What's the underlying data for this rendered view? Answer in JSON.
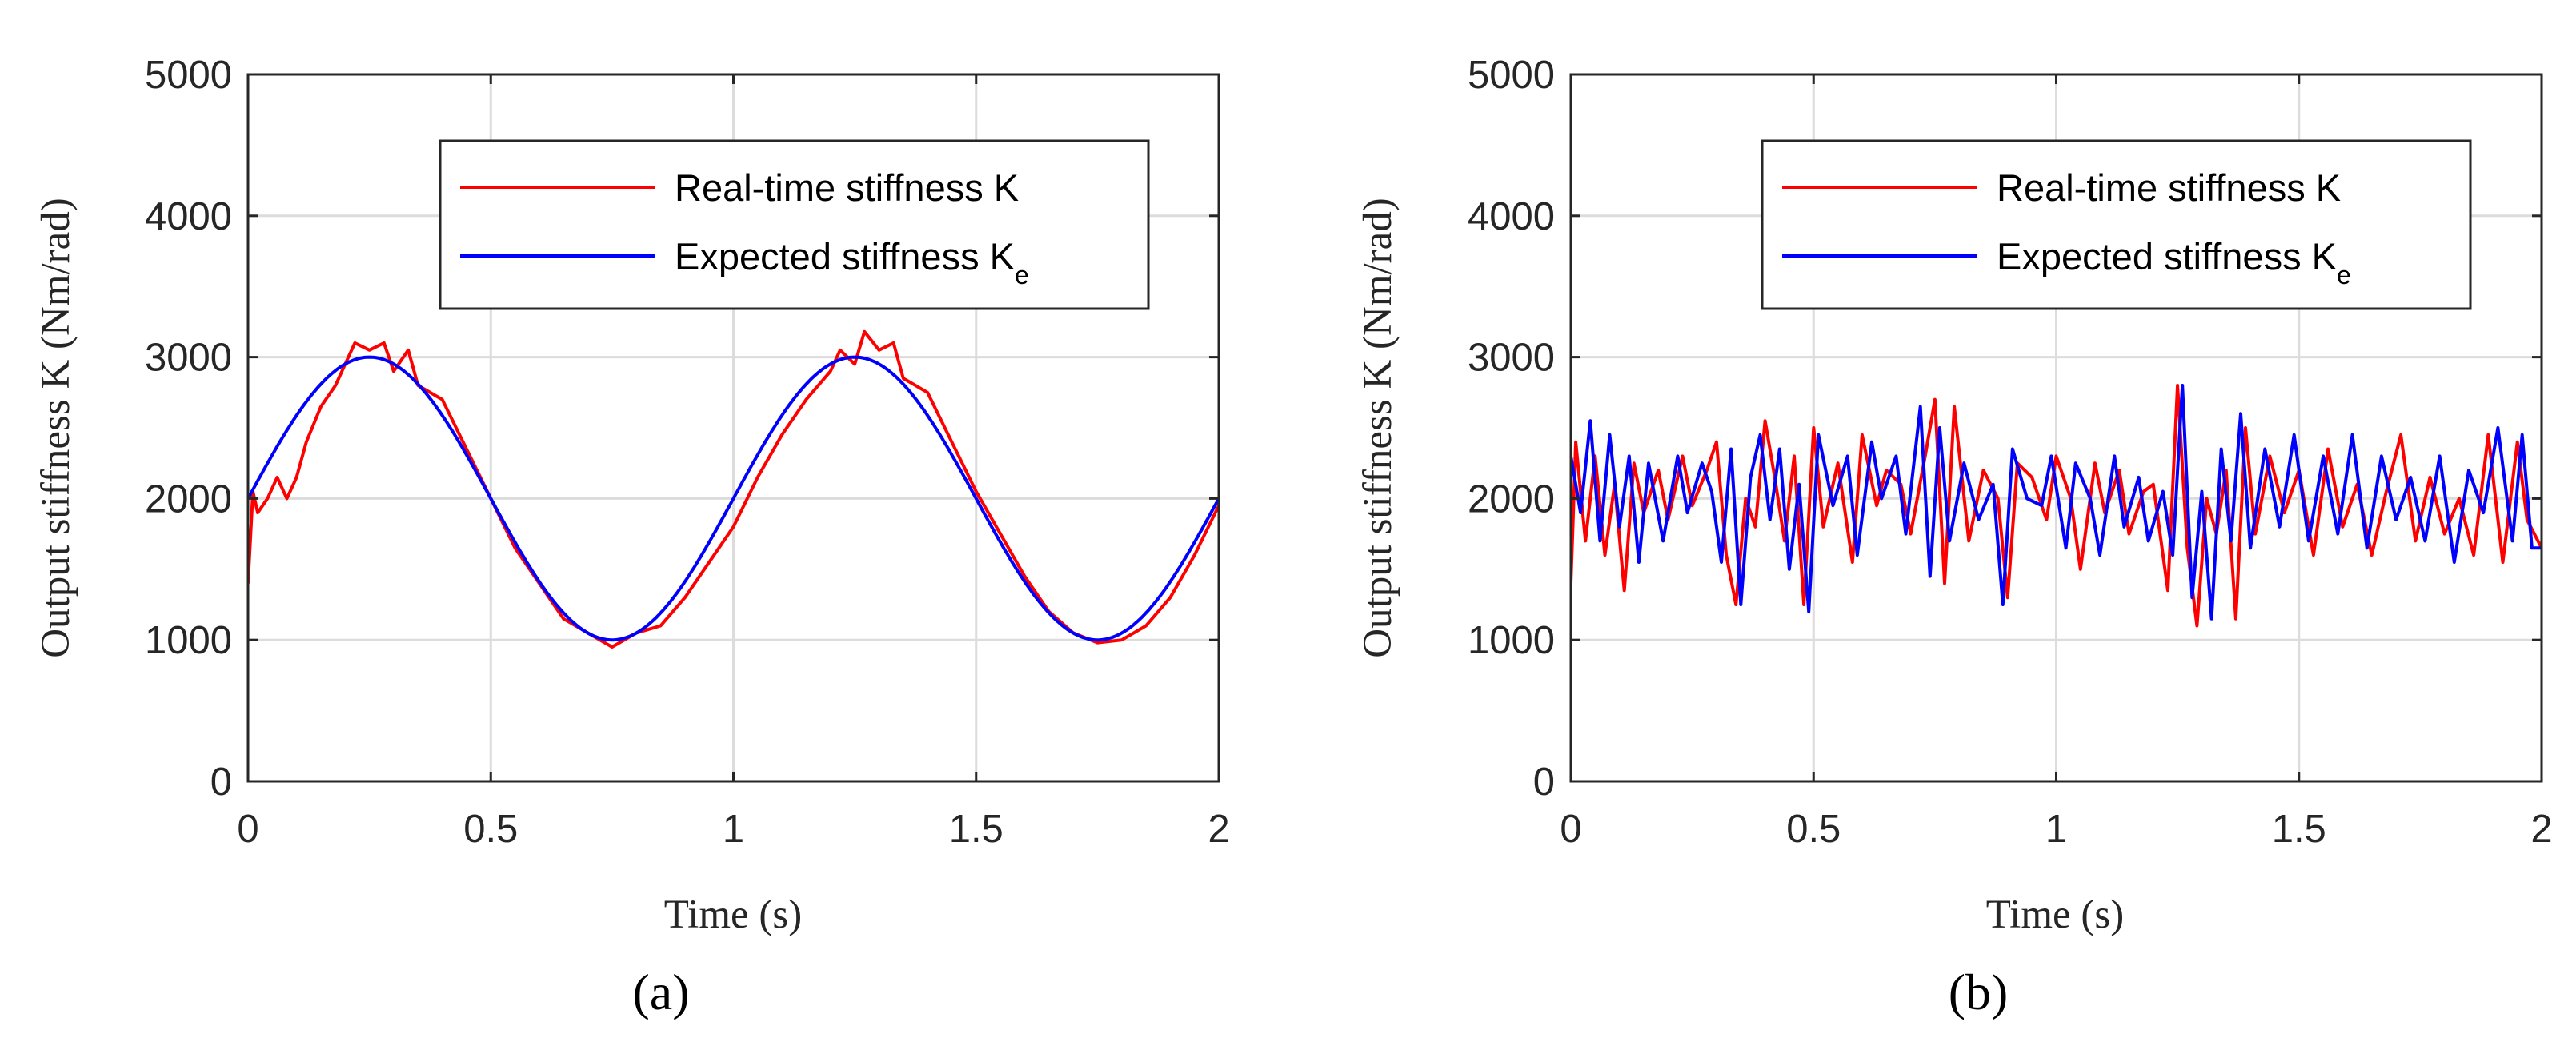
{
  "chart_data": [
    {
      "type": "line",
      "panel_label": "(a)",
      "xlabel": "Time (s)",
      "ylabel": "Output stiffness K (Nm/rad)",
      "xlim": [
        0,
        2
      ],
      "ylim": [
        0,
        5000
      ],
      "xticks": [
        0,
        0.5,
        1,
        1.5,
        2
      ],
      "xtick_labels": [
        "0",
        "0.5",
        "1",
        "1.5",
        "2"
      ],
      "yticks": [
        0,
        1000,
        2000,
        3000,
        4000,
        5000
      ],
      "ytick_labels": [
        "0",
        "1000",
        "2000",
        "3000",
        "4000",
        "5000"
      ],
      "grid": true,
      "legend_position": "top-right",
      "series": [
        {
          "name": "Real-time stiffness K",
          "color": "#ff0000",
          "x": [
            0,
            0.01,
            0.02,
            0.04,
            0.06,
            0.08,
            0.1,
            0.12,
            0.15,
            0.18,
            0.2,
            0.22,
            0.25,
            0.28,
            0.3,
            0.33,
            0.35,
            0.4,
            0.45,
            0.5,
            0.55,
            0.6,
            0.65,
            0.7,
            0.75,
            0.8,
            0.85,
            0.9,
            0.95,
            1.0,
            1.05,
            1.1,
            1.15,
            1.2,
            1.22,
            1.25,
            1.27,
            1.3,
            1.33,
            1.35,
            1.4,
            1.45,
            1.5,
            1.55,
            1.6,
            1.65,
            1.7,
            1.75,
            1.8,
            1.85,
            1.9,
            1.95,
            2.0
          ],
          "y": [
            1400,
            2050,
            1900,
            2000,
            2150,
            2000,
            2150,
            2400,
            2650,
            2800,
            2950,
            3100,
            3050,
            3100,
            2900,
            3050,
            2800,
            2700,
            2350,
            2000,
            1650,
            1400,
            1150,
            1050,
            950,
            1050,
            1100,
            1300,
            1550,
            1800,
            2150,
            2450,
            2700,
            2900,
            3050,
            2950,
            3180,
            3050,
            3100,
            2850,
            2750,
            2400,
            2050,
            1750,
            1450,
            1200,
            1050,
            980,
            1000,
            1100,
            1300,
            1600,
            1950
          ]
        },
        {
          "name": "Expected stiffness Ke",
          "color": "#0000ff",
          "function": "2000 + 1000*sin(2*pi*t)",
          "x": [
            0,
            0.1,
            0.2,
            0.25,
            0.3,
            0.4,
            0.5,
            0.6,
            0.7,
            0.75,
            0.8,
            0.9,
            1.0,
            1.1,
            1.2,
            1.25,
            1.3,
            1.4,
            1.5,
            1.6,
            1.7,
            1.75,
            1.8,
            1.9,
            2.0
          ],
          "y": [
            2000,
            2588,
            2951,
            3000,
            2951,
            2588,
            2000,
            1412,
            1049,
            1000,
            1049,
            1412,
            2000,
            2588,
            2951,
            3000,
            2951,
            2588,
            2000,
            1412,
            1049,
            1000,
            1049,
            1412,
            2000
          ]
        }
      ]
    },
    {
      "type": "line",
      "panel_label": "(b)",
      "xlabel": "Time (s)",
      "ylabel": "Output stiffness K (Nm/rad)",
      "xlim": [
        0,
        2
      ],
      "ylim": [
        0,
        5000
      ],
      "xticks": [
        0,
        0.5,
        1,
        1.5,
        2
      ],
      "xtick_labels": [
        "0",
        "0.5",
        "1",
        "1.5",
        "2"
      ],
      "yticks": [
        0,
        1000,
        2000,
        3000,
        4000,
        5000
      ],
      "ytick_labels": [
        "0",
        "1000",
        "2000",
        "3000",
        "4000",
        "5000"
      ],
      "grid": true,
      "legend_position": "top-right",
      "series": [
        {
          "name": "Real-time stiffness K",
          "color": "#ff0000",
          "x": [
            0,
            0.01,
            0.03,
            0.05,
            0.07,
            0.09,
            0.11,
            0.13,
            0.15,
            0.18,
            0.2,
            0.23,
            0.25,
            0.28,
            0.3,
            0.32,
            0.34,
            0.36,
            0.38,
            0.4,
            0.42,
            0.44,
            0.46,
            0.48,
            0.5,
            0.52,
            0.55,
            0.58,
            0.6,
            0.63,
            0.65,
            0.68,
            0.7,
            0.73,
            0.75,
            0.77,
            0.79,
            0.82,
            0.85,
            0.88,
            0.9,
            0.92,
            0.95,
            0.98,
            1.0,
            1.03,
            1.05,
            1.08,
            1.1,
            1.13,
            1.15,
            1.18,
            1.2,
            1.23,
            1.25,
            1.27,
            1.29,
            1.31,
            1.33,
            1.35,
            1.37,
            1.39,
            1.41,
            1.44,
            1.47,
            1.5,
            1.53,
            1.56,
            1.59,
            1.62,
            1.65,
            1.68,
            1.71,
            1.74,
            1.77,
            1.8,
            1.83,
            1.86,
            1.89,
            1.92,
            1.95,
            1.97,
            2.0
          ],
          "y": [
            1400,
            2400,
            1700,
            2300,
            1600,
            2100,
            1350,
            2250,
            1900,
            2200,
            1850,
            2300,
            1950,
            2200,
            2400,
            1600,
            1250,
            2000,
            1800,
            2550,
            2150,
            1700,
            2300,
            1250,
            2500,
            1800,
            2250,
            1550,
            2450,
            1950,
            2200,
            2100,
            1750,
            2300,
            2700,
            1400,
            2650,
            1700,
            2200,
            2000,
            1300,
            2250,
            2150,
            1850,
            2300,
            2000,
            1500,
            2250,
            1900,
            2200,
            1750,
            2050,
            2100,
            1350,
            2800,
            1650,
            1100,
            2000,
            1750,
            2200,
            1150,
            2500,
            1750,
            2300,
            1900,
            2200,
            1600,
            2350,
            1800,
            2100,
            1600,
            2050,
            2450,
            1700,
            2150,
            1750,
            2000,
            1600,
            2450,
            1550,
            2400,
            1850,
            1650
          ]
        },
        {
          "name": "Expected stiffness Ke",
          "color": "#0000ff",
          "x": [
            0,
            0.02,
            0.04,
            0.06,
            0.08,
            0.1,
            0.12,
            0.14,
            0.16,
            0.19,
            0.22,
            0.24,
            0.27,
            0.29,
            0.31,
            0.33,
            0.35,
            0.37,
            0.39,
            0.41,
            0.43,
            0.45,
            0.47,
            0.49,
            0.51,
            0.54,
            0.57,
            0.59,
            0.62,
            0.64,
            0.67,
            0.69,
            0.72,
            0.74,
            0.76,
            0.78,
            0.81,
            0.84,
            0.87,
            0.89,
            0.91,
            0.94,
            0.97,
            0.99,
            1.02,
            1.04,
            1.07,
            1.09,
            1.12,
            1.14,
            1.17,
            1.19,
            1.22,
            1.24,
            1.26,
            1.28,
            1.3,
            1.32,
            1.34,
            1.36,
            1.38,
            1.4,
            1.43,
            1.46,
            1.49,
            1.52,
            1.55,
            1.58,
            1.61,
            1.64,
            1.67,
            1.7,
            1.73,
            1.76,
            1.79,
            1.82,
            1.85,
            1.88,
            1.91,
            1.94,
            1.96,
            1.98,
            2.0
          ],
          "y": [
            2300,
            1900,
            2550,
            1700,
            2450,
            1800,
            2300,
            1550,
            2250,
            1700,
            2300,
            1900,
            2250,
            2050,
            1550,
            2350,
            1250,
            2150,
            2450,
            1850,
            2350,
            1500,
            2100,
            1200,
            2450,
            1950,
            2300,
            1600,
            2400,
            2000,
            2300,
            1750,
            2650,
            1450,
            2500,
            1700,
            2250,
            1850,
            2100,
            1250,
            2350,
            2000,
            1950,
            2300,
            1650,
            2250,
            2000,
            1600,
            2300,
            1800,
            2150,
            1700,
            2050,
            1600,
            2800,
            1300,
            2050,
            1150,
            2350,
            1700,
            2600,
            1650,
            2350,
            1800,
            2450,
            1700,
            2300,
            1750,
            2450,
            1650,
            2300,
            1850,
            2150,
            1700,
            2300,
            1550,
            2200,
            1900,
            2500,
            1700,
            2450,
            1650,
            1650
          ]
        }
      ]
    }
  ]
}
